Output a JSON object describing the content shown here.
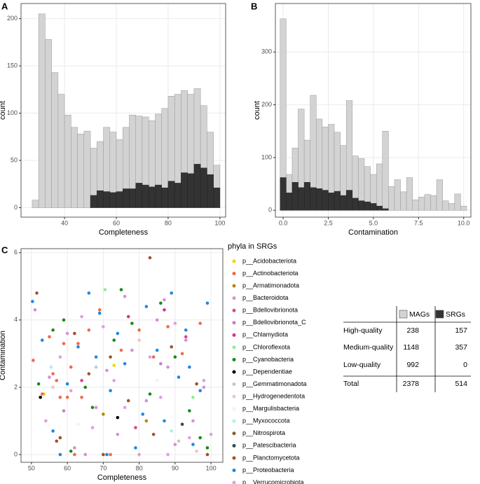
{
  "chart_data": [
    {
      "type": "histogram",
      "panel": "A",
      "xlabel": "Completeness",
      "ylabel": "count",
      "bins": [
        27.5,
        30,
        32.5,
        35,
        37.5,
        40,
        42.5,
        45,
        47.5,
        50,
        52.5,
        55,
        57.5,
        60,
        62.5,
        65,
        67.5,
        70,
        72.5,
        75,
        77.5,
        80,
        82.5,
        85,
        87.5,
        90,
        92.5,
        95,
        97.5,
        100
      ],
      "series": [
        {
          "color": "#d3d3d3",
          "values": [
            8,
            205,
            178,
            143,
            120,
            98,
            85,
            78,
            81,
            63,
            70,
            85,
            80,
            72,
            85,
            98,
            97,
            96,
            92,
            99,
            105,
            118,
            120,
            124,
            120,
            126,
            108,
            80,
            45
          ]
        },
        {
          "color": "#333333",
          "values": [
            0,
            0,
            0,
            0,
            0,
            0,
            0,
            0,
            0,
            13,
            18,
            17,
            16,
            17,
            20,
            20,
            26,
            24,
            22,
            24,
            21,
            28,
            26,
            37,
            36,
            46,
            42,
            35,
            21
          ]
        }
      ],
      "xlim": [
        23.2,
        102.2
      ],
      "ylim": [
        -10,
        216
      ],
      "xticks": [
        40,
        60,
        80,
        100
      ],
      "yticks": [
        0,
        50,
        100,
        150,
        200
      ],
      "grid": true
    },
    {
      "type": "histogram",
      "panel": "B",
      "xlabel": "Contamination",
      "ylabel": "count",
      "bins": [
        -0.167,
        0.167,
        0.5,
        0.833,
        1.167,
        1.5,
        1.833,
        2.167,
        2.5,
        2.833,
        3.167,
        3.5,
        3.833,
        4.167,
        4.5,
        4.833,
        5.167,
        5.5,
        5.833,
        6.167,
        6.5,
        6.833,
        7.167,
        7.5,
        7.833,
        8.167,
        8.5,
        8.833,
        9.167,
        9.5,
        9.833,
        10.167
      ],
      "series": [
        {
          "color": "#d3d3d3",
          "values": [
            363,
            68,
            118,
            192,
            133,
            218,
            173,
            158,
            163,
            148,
            123,
            208,
            103,
            98,
            83,
            68,
            88,
            150,
            45,
            58,
            35,
            62,
            20,
            25,
            30,
            28,
            58,
            18,
            13,
            31,
            8
          ]
        },
        {
          "color": "#333333",
          "values": [
            62,
            33,
            53,
            43,
            53,
            43,
            41,
            38,
            33,
            36,
            28,
            38,
            23,
            18,
            16,
            13,
            8,
            3,
            0,
            0,
            0,
            0,
            0,
            0,
            0,
            0,
            0,
            0,
            0,
            0,
            0
          ]
        }
      ],
      "xlim": [
        -0.43,
        10.4
      ],
      "ylim": [
        -13,
        392
      ],
      "xticks": [
        {
          "value": 0,
          "label": "0.0"
        },
        2.5,
        {
          "value": 5,
          "label": "5.0"
        },
        7.5,
        {
          "value": 10,
          "label": "10.0"
        }
      ],
      "yticks": [
        0,
        100,
        200,
        300
      ],
      "grid": true
    },
    {
      "type": "scatter",
      "panel": "C",
      "xlabel": "Completeness",
      "ylabel": "Contamination",
      "legend_title": "phyla in SRGs",
      "xlim": [
        47.1,
        103.3
      ],
      "ylim": [
        -0.23,
        6.12
      ],
      "xticks": [
        50,
        60,
        70,
        80,
        90,
        100
      ],
      "yticks": [
        0,
        2,
        4,
        6
      ],
      "grid": true,
      "series": [
        {
          "name": "p__Acidobacteriota",
          "color": "#f2d600",
          "x": [
            53.5,
            73
          ],
          "y": [
            1.8,
            2.65
          ]
        },
        {
          "name": "p__Actinobacteriota",
          "color": "#f0694f",
          "x": [
            50.5,
            53,
            55,
            57,
            58,
            59,
            61,
            62,
            64,
            66,
            69,
            72,
            75,
            80,
            84,
            88,
            92,
            97,
            60,
            56,
            63
          ],
          "y": [
            2.8,
            1.8,
            3.5,
            2.2,
            1.7,
            3.3,
            2.6,
            0,
            1.7,
            3.7,
            4.3,
            0,
            3.1,
            3.7,
            2.9,
            3.8,
            3.0,
            3.9,
            1.7,
            2.4,
            3.3
          ]
        },
        {
          "name": "p__Armatimonadota",
          "color": "#b8860b",
          "x": [
            70,
            82
          ],
          "y": [
            1.2,
            1.0
          ]
        },
        {
          "name": "p__Bacteroidota",
          "color": "#d68fd6",
          "x": [
            51,
            55,
            60,
            65,
            68,
            71,
            74,
            78,
            82,
            85,
            88,
            90,
            93,
            95,
            98,
            87,
            76,
            62
          ],
          "y": [
            4.3,
            2.3,
            3.6,
            0,
            1.4,
            2.5,
            0.6,
            3.1,
            1.6,
            4.0,
            2.6,
            0.3,
            3.4,
            1.0,
            2.0,
            4.6,
            4.7,
            0.2
          ]
        },
        {
          "name": "p__Bdellovibrionota",
          "color": "#e0448a",
          "x": [
            64,
            79,
            93
          ],
          "y": [
            2.2,
            0.8,
            3.5
          ]
        },
        {
          "name": "p__Bdellovibrionota_C",
          "color": "#c77fcf",
          "x": [
            59,
            86
          ],
          "y": [
            1.3,
            2.7
          ]
        },
        {
          "name": "p__Chlamydiota",
          "color": "#d6338a",
          "x": [
            77,
            87
          ],
          "y": [
            4.1,
            4.3
          ]
        },
        {
          "name": "p__Chloroflexota",
          "color": "#90ee90",
          "x": [
            70.5,
            95
          ],
          "y": [
            4.9,
            1.7
          ]
        },
        {
          "name": "p__Cyanobacteria",
          "color": "#1a8a1a",
          "x": [
            52,
            56,
            59,
            61,
            67,
            73,
            78,
            83,
            86,
            90,
            94,
            97,
            99,
            75,
            65
          ],
          "y": [
            2.1,
            3.7,
            4.0,
            0.1,
            1.4,
            3.4,
            3.9,
            1.8,
            4.5,
            2.9,
            1.3,
            0.5,
            0.2,
            4.9,
            2.0
          ]
        },
        {
          "name": "p__Dependentiae",
          "color": "#000000",
          "x": [
            52.5,
            74
          ],
          "y": [
            1.7,
            1.1
          ]
        },
        {
          "name": "p__Gemmatimonadota",
          "color": "#c8c8c8",
          "x": [
            68,
            91
          ],
          "y": [
            2.6,
            0.4
          ]
        },
        {
          "name": "p__Hydrogenedentota",
          "color": "#f4c2c2",
          "x": [
            56,
            80,
            96
          ],
          "y": [
            2.0,
            3.4,
            0.1
          ]
        },
        {
          "name": "p__Margulisbacteria",
          "color": "#f5f5dc",
          "x": [
            63,
            85
          ],
          "y": [
            0.9,
            2.2
          ]
        },
        {
          "name": "p__Myxococcota",
          "color": "#aeeeee",
          "x": [
            55.5,
            89
          ],
          "y": [
            2.6,
            0.7
          ]
        },
        {
          "name": "p__Nitrospirota",
          "color": "#8b5a2b",
          "x": [
            58,
            72
          ],
          "y": [
            0.5,
            2.9
          ]
        },
        {
          "name": "p__Patescibacteria",
          "color": "#2f4f4f",
          "x": [
            92
          ],
          "y": [
            0.9
          ]
        },
        {
          "name": "p__Planctomycetota",
          "color": "#a0522d",
          "x": [
            51.5,
            57,
            62,
            66,
            70,
            77,
            83,
            84,
            89,
            96,
            99
          ],
          "y": [
            4.8,
            0.4,
            3.6,
            2.4,
            0.0,
            1.6,
            5.85,
            0.6,
            3.2,
            2.1,
            0.0
          ]
        },
        {
          "name": "p__Proteobacteria",
          "color": "#1e88e5",
          "x": [
            50.3,
            53,
            56,
            60,
            63,
            66,
            69,
            72,
            74,
            76,
            79,
            82,
            85,
            87,
            89,
            91,
            93,
            95,
            97,
            99,
            81,
            68,
            58,
            71,
            94
          ],
          "y": [
            4.55,
            3.4,
            0.7,
            2.1,
            3.2,
            4.8,
            4.2,
            1.9,
            3.6,
            2.7,
            0.2,
            4.4,
            3.1,
            1.0,
            4.8,
            2.3,
            3.7,
            0.3,
            1.9,
            4.5,
            1.2,
            2.9,
            0.0,
            0.0,
            2.6
          ]
        },
        {
          "name": "p__Verrucomicrobiota",
          "color": "#dda0dd",
          "x": [
            54,
            58,
            61,
            64,
            67,
            70,
            73,
            76,
            80,
            83,
            86,
            90,
            94,
            98,
            88,
            100
          ],
          "y": [
            1.0,
            2.9,
            1.9,
            4.1,
            0.8,
            3.8,
            2.2,
            1.4,
            0.0,
            2.9,
            1.7,
            3.9,
            0.5,
            2.2,
            0.0,
            0.6
          ]
        }
      ]
    }
  ],
  "table": {
    "columns": [
      {
        "name": "MAGs",
        "color": "#d3d3d3"
      },
      {
        "name": "SRGs",
        "color": "#333333"
      }
    ],
    "rows": [
      [
        "High-quality",
        238,
        157
      ],
      [
        "Medium-quality",
        1148,
        357
      ],
      [
        "Low-quality",
        992,
        0
      ],
      [
        "Total",
        2378,
        514
      ]
    ]
  }
}
